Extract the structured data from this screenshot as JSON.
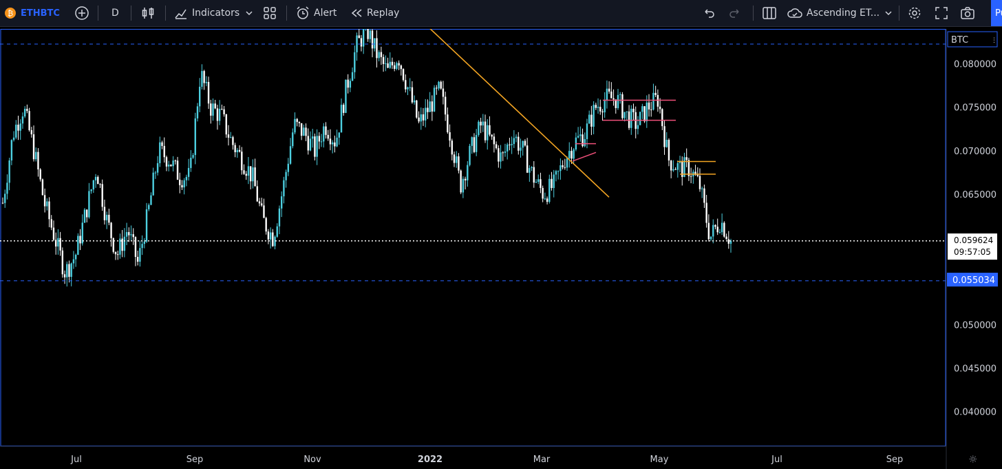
{
  "toolbar": {
    "symbol": "ETHBTC",
    "interval": "D",
    "indicators_label": "Indicators",
    "alert_label": "Alert",
    "replay_label": "Replay",
    "layout_name": "Ascending ET...",
    "publish_label": "Pu"
  },
  "price_axis": {
    "currency": "BTC",
    "ticks": [
      "0.080000",
      "0.075000",
      "0.070000",
      "0.065000",
      "0.060000",
      "0.055000",
      "0.050000",
      "0.045000",
      "0.040000"
    ],
    "current_price": "0.059624",
    "countdown": "09:57:05",
    "alert_level": "0.055034"
  },
  "time_axis": {
    "ticks": [
      "Jul",
      "Sep",
      "Nov",
      "2022",
      "Mar",
      "May",
      "Jul",
      "Sep"
    ]
  },
  "colors": {
    "candle_up": "#4dd0e1",
    "candle_down": "#ffffff",
    "trendline": "#f5a623",
    "channel": "#f0507a",
    "dashed_level": "#2962ff",
    "accent": "#2962ff"
  },
  "chart_data": {
    "type": "line",
    "title": "",
    "series": [
      {
        "name": "ETHBTC",
        "values": [
          0.064,
          0.072,
          0.075,
          0.07,
          0.064,
          0.06,
          0.056,
          0.058,
          0.063,
          0.068,
          0.062,
          0.058,
          0.061,
          0.057,
          0.063,
          0.07,
          0.069,
          0.067,
          0.067,
          0.079,
          0.075,
          0.074,
          0.071,
          0.069,
          0.067,
          0.062,
          0.06,
          0.066,
          0.073,
          0.072,
          0.07,
          0.073,
          0.071,
          0.077,
          0.082,
          0.084,
          0.081,
          0.079,
          0.081,
          0.077,
          0.073,
          0.075,
          0.077,
          0.072,
          0.066,
          0.07,
          0.073,
          0.071,
          0.069,
          0.072,
          0.07,
          0.067,
          0.065,
          0.066,
          0.069,
          0.071,
          0.072,
          0.075,
          0.076,
          0.076,
          0.074,
          0.073,
          0.075,
          0.076,
          0.069,
          0.068,
          0.068,
          0.066,
          0.06,
          0.062,
          0.0596
        ]
      }
    ],
    "xlabel": "",
    "ylabel": "",
    "ylim": [
      0.036,
      0.084
    ],
    "horizontal_levels": [
      0.08226,
      0.055034
    ],
    "annotations": [
      "descending trendline from Dec to Mar",
      "rectangle channel Mar-May",
      "breakdown range mid May"
    ]
  }
}
